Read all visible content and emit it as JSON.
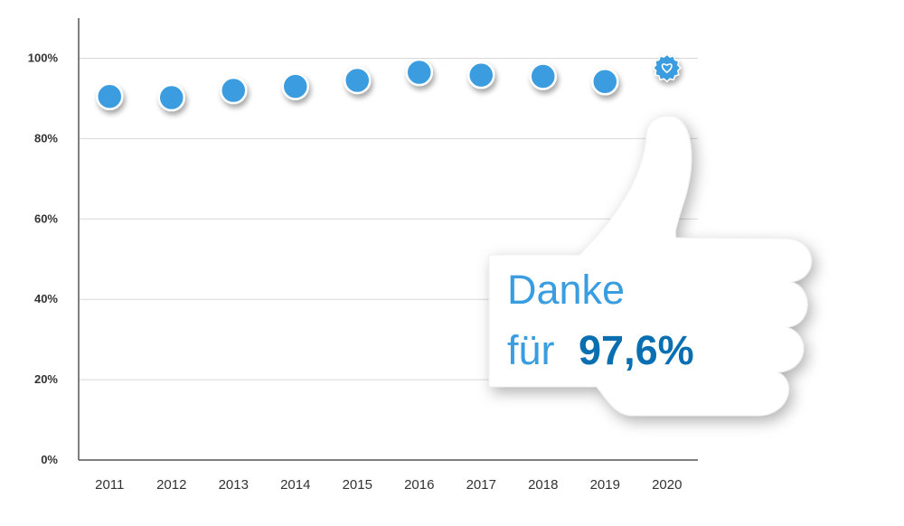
{
  "chart_data": {
    "type": "scatter",
    "x": [
      "2011",
      "2012",
      "2013",
      "2014",
      "2015",
      "2016",
      "2017",
      "2018",
      "2019",
      "2020"
    ],
    "values": [
      90.5,
      90.2,
      92.0,
      93.0,
      94.5,
      96.5,
      95.8,
      95.5,
      94.2,
      97.6
    ],
    "highlight_index": 9,
    "highlight_icon": "heart-badge-icon",
    "yticks": [
      "0%",
      "20%",
      "40%",
      "60%",
      "80%",
      "100%"
    ],
    "ylim": [
      0,
      100
    ],
    "grid": true,
    "title": "",
    "xlabel": "",
    "ylabel": ""
  },
  "callout": {
    "line1": "Danke",
    "line2_prefix": "für",
    "highlight_value": "97,6%",
    "icon": "thumbs-up-icon"
  },
  "colors": {
    "point": "#3a9de0",
    "point_stroke": "#ffffff",
    "grid": "#d8d8d8",
    "axis": "#555555",
    "text_light_blue": "#3a9de0",
    "text_dark_blue": "#0a6fb0",
    "thumb_fill": "#ffffff"
  }
}
